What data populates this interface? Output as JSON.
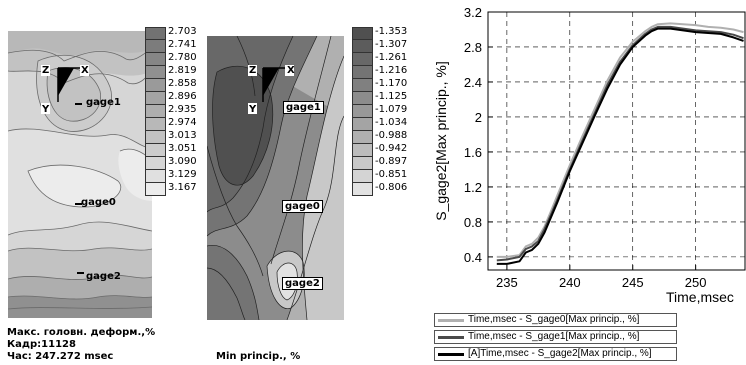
{
  "left_panel": {
    "scale_values": [
      "2.703",
      "2.741",
      "2.780",
      "2.819",
      "2.858",
      "2.896",
      "2.935",
      "2.974",
      "3.013",
      "3.051",
      "3.090",
      "3.129",
      "3.167"
    ],
    "scale_colors": [
      "#727272",
      "#7c7c7c",
      "#868686",
      "#909090",
      "#9a9a9a",
      "#a4a4a4",
      "#aeaeae",
      "#b8b8b8",
      "#c2c2c2",
      "#cccccc",
      "#d6d6d6",
      "#e0e0e0",
      "#ececec"
    ],
    "gages": [
      "gage1",
      "gage0",
      "gage2"
    ],
    "axes_labels": [
      "Z",
      "X",
      "Y"
    ],
    "caption_lines": [
      "Макс. головн. деформ.,%",
      "Кадр:11128",
      "Час: 247.272 msec"
    ]
  },
  "middle_panel": {
    "scale_values": [
      "-1.353",
      "-1.307",
      "-1.261",
      "-1.216",
      "-1.170",
      "-1.125",
      "-1.079",
      "-1.034",
      "-0.988",
      "-0.942",
      "-0.897",
      "-0.851",
      "-0.806"
    ],
    "scale_colors": [
      "#505050",
      "#5c5c5c",
      "#686868",
      "#747474",
      "#808080",
      "#8c8c8c",
      "#989898",
      "#a4a4a4",
      "#b0b0b0",
      "#bcbcbc",
      "#c8c8c8",
      "#d4d4d4",
      "#e2e2e2"
    ],
    "gages": [
      "gage1",
      "gage0",
      "gage2"
    ],
    "axes_labels": [
      "Z",
      "X",
      "Y"
    ],
    "caption": "Min princip., %"
  },
  "chart_data": {
    "type": "line",
    "title": "",
    "xlabel": "Time,msec",
    "ylabel": "S_gage2[Max princip., %]",
    "xlim": [
      233.5,
      254
    ],
    "ylim": [
      0.25,
      3.2
    ],
    "x_ticks": [
      "235",
      "240",
      "245",
      "250"
    ],
    "y_ticks": [
      "0.4",
      "0.8",
      "1.2",
      "1.6",
      "2",
      "2.4",
      "2.8",
      "3.2"
    ],
    "grid": true,
    "legend_placement": "below",
    "series": [
      {
        "name": "Time,msec - S_gage0[Max princip., %]",
        "color": "#b0b0b0",
        "x": [
          234.2,
          235,
          236,
          236.5,
          237,
          237.5,
          238,
          238.5,
          239,
          240,
          241,
          242,
          243,
          244,
          245,
          246,
          246.5,
          247,
          248,
          249,
          250,
          251,
          252,
          253,
          253.8
        ],
        "y": [
          0.4,
          0.4,
          0.42,
          0.52,
          0.55,
          0.62,
          0.75,
          0.92,
          1.1,
          1.45,
          1.78,
          2.1,
          2.42,
          2.68,
          2.86,
          2.98,
          3.03,
          3.06,
          3.07,
          3.06,
          3.05,
          3.03,
          3.02,
          3.0,
          2.97
        ]
      },
      {
        "name": "Time,msec - S_gage1[Max princip., %]",
        "color": "#4a4a4a",
        "x": [
          234.2,
          235,
          236,
          236.5,
          237,
          237.5,
          238,
          238.5,
          239,
          240,
          241,
          242,
          243,
          244,
          245,
          246,
          246.5,
          247,
          248,
          249,
          250,
          251,
          252,
          253,
          253.8
        ],
        "y": [
          0.36,
          0.37,
          0.4,
          0.49,
          0.52,
          0.58,
          0.72,
          0.88,
          1.05,
          1.4,
          1.73,
          2.05,
          2.37,
          2.63,
          2.82,
          2.95,
          3.0,
          3.03,
          3.03,
          3.01,
          2.99,
          2.98,
          2.97,
          2.94,
          2.9
        ]
      },
      {
        "name": "[A]Time,msec - S_gage2[Max princip., %]",
        "color": "#000000",
        "x": [
          234.2,
          235,
          236,
          236.5,
          237,
          237.5,
          238,
          238.5,
          239,
          240,
          241,
          242,
          243,
          244,
          245,
          246,
          246.5,
          247,
          248,
          249,
          250,
          251,
          252,
          253,
          253.8
        ],
        "y": [
          0.32,
          0.32,
          0.35,
          0.45,
          0.48,
          0.55,
          0.68,
          0.85,
          1.02,
          1.38,
          1.7,
          2.02,
          2.33,
          2.6,
          2.8,
          2.93,
          2.98,
          3.01,
          3.01,
          2.99,
          2.97,
          2.96,
          2.95,
          2.91,
          2.87
        ]
      }
    ]
  }
}
